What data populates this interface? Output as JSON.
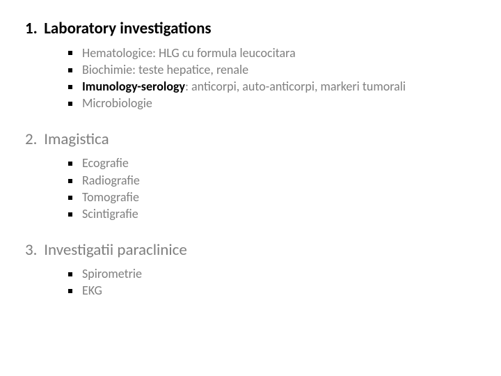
{
  "slide": {
    "background_color": "#ffffff",
    "text_color_primary": "#000000",
    "text_color_secondary": "#7f7f7f",
    "bullet_color": "#000000",
    "heading_fontsize": 23,
    "item_fontsize": 18,
    "sections": [
      {
        "number": "1.",
        "title": "Laboratory investigations",
        "title_bold": true,
        "items": [
          {
            "parts": [
              {
                "text": "Hematologice: HLG cu formula leucocitara",
                "bold": false
              }
            ]
          },
          {
            "parts": [
              {
                "text": "Biochimie: teste hepatice, renale",
                "bold": false
              }
            ]
          },
          {
            "parts": [
              {
                "text": "Imunology-serology",
                "bold": true
              },
              {
                "text": ": anticorpi, auto-anticorpi, markeri tumorali",
                "bold": false
              }
            ]
          },
          {
            "parts": [
              {
                "text": "Microbiologie",
                "bold": false
              }
            ]
          }
        ]
      },
      {
        "number": "2.",
        "title": "Imagistica",
        "title_bold": false,
        "items": [
          {
            "parts": [
              {
                "text": "Ecografie",
                "bold": false
              }
            ]
          },
          {
            "parts": [
              {
                "text": "Radiografie",
                "bold": false
              }
            ]
          },
          {
            "parts": [
              {
                "text": "Tomografie",
                "bold": false
              }
            ]
          },
          {
            "parts": [
              {
                "text": "Scintigrafie",
                "bold": false
              }
            ]
          }
        ]
      },
      {
        "number": "3.",
        "title": "Investigatii paraclinice",
        "title_bold": false,
        "items": [
          {
            "parts": [
              {
                "text": "Spirometrie",
                "bold": false
              }
            ]
          },
          {
            "parts": [
              {
                "text": "EKG",
                "bold": false
              }
            ]
          }
        ]
      }
    ]
  }
}
